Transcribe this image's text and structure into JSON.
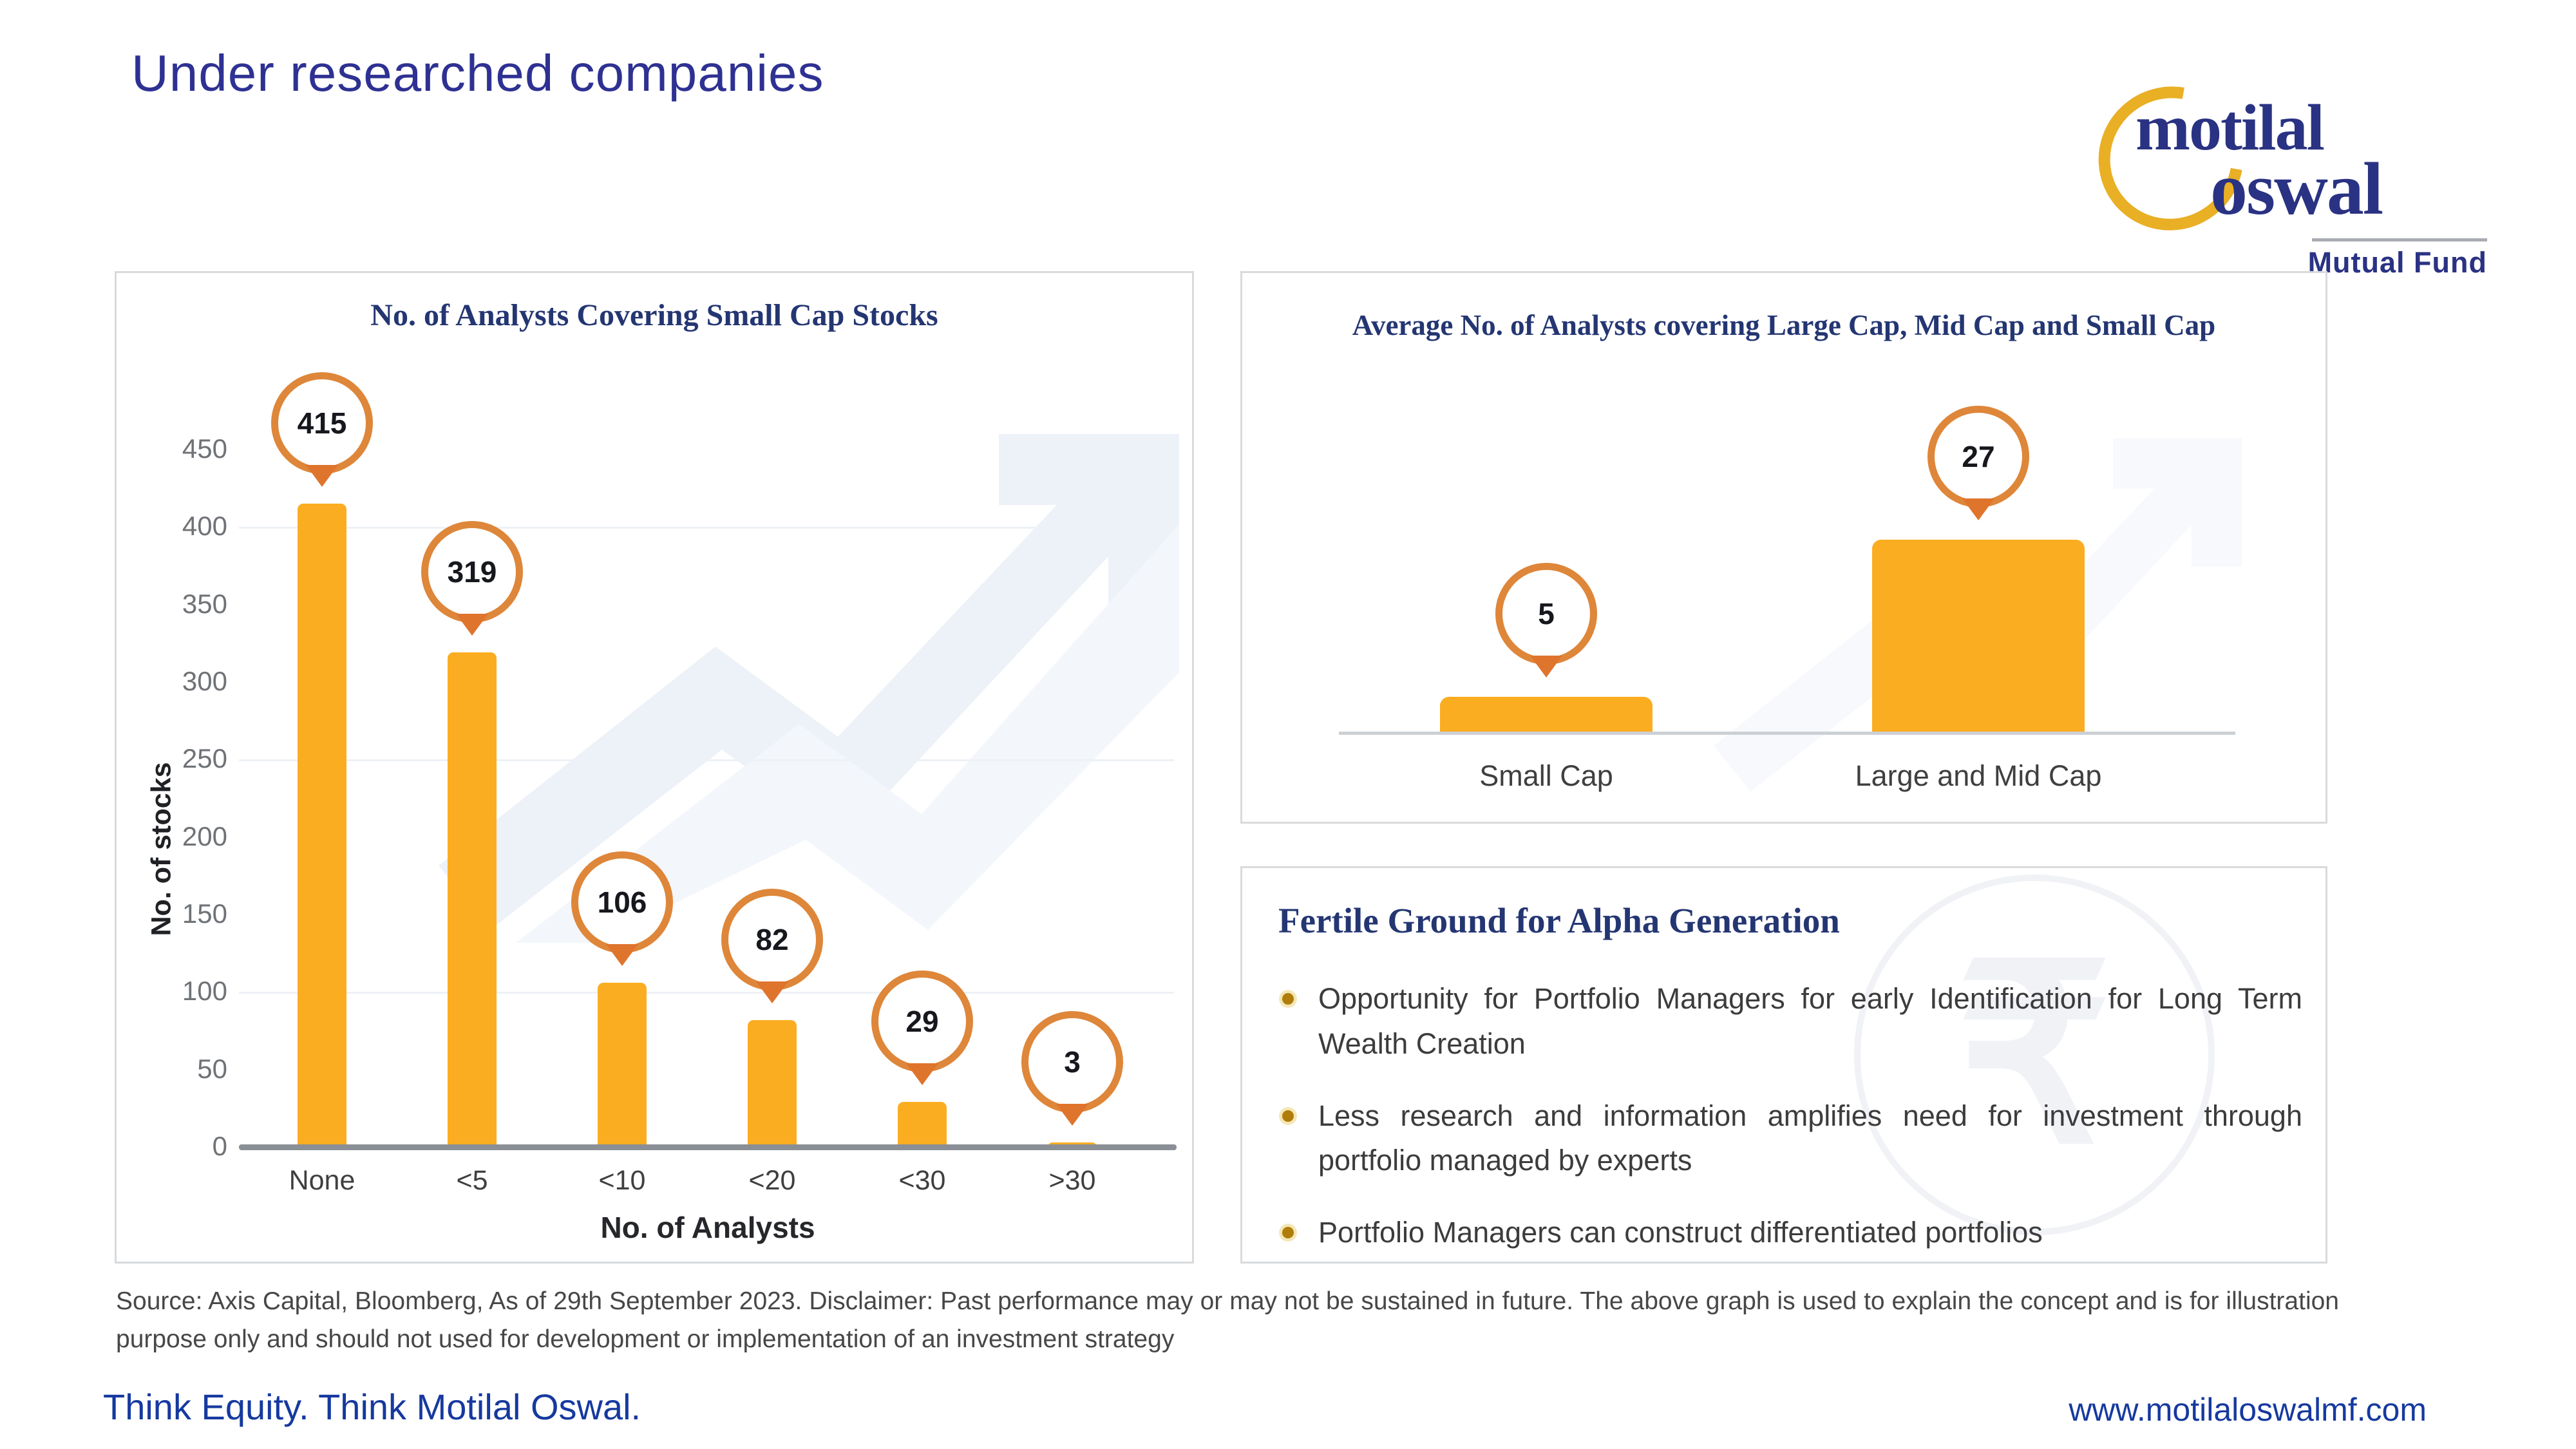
{
  "page": {
    "title": "Under researched companies",
    "source_note": "Source: Axis Capital, Bloomberg, As of 29th September 2023. Disclaimer: Past performance may or may not be sustained in future. The above graph is used to explain the concept and is for illustration purpose only and should not used for development or implementation of an investment strategy",
    "footer_left": "Think Equity. Think Motilal Oswal.",
    "footer_right": "www.motilaloswalmf.com"
  },
  "logo": {
    "word1": "motilal",
    "word2": "oswal",
    "subtitle": "Mutual Fund"
  },
  "colors": {
    "bar": "#FBAD21",
    "bubble_ring": "#DE8639",
    "bubble_pointer": "#DF742D",
    "heading_navy": "#243672",
    "title_blue": "#2E3192",
    "footer_blue": "#16399F"
  },
  "chart_data": [
    {
      "type": "bar",
      "title": "No. of Analysts Covering Small Cap Stocks",
      "xlabel": "No. of Analysts",
      "ylabel": "No. of stocks",
      "categories": [
        "None",
        "<5",
        "<10",
        "<20",
        "<30",
        ">30"
      ],
      "values": [
        415,
        319,
        106,
        82,
        29,
        3
      ],
      "yticks": [
        0,
        50,
        100,
        150,
        200,
        250,
        300,
        350,
        400,
        450
      ],
      "ylim": [
        0,
        450
      ],
      "grid": "faint horizontal",
      "legend": "none",
      "bar_color": "#FBAD21",
      "data_labels": "in orange-ringed callout bubbles above bars"
    },
    {
      "type": "bar",
      "title": "Average No. of Analysts covering Large Cap, Mid Cap and Small Cap",
      "xlabel": "",
      "ylabel": "",
      "categories": [
        "Small Cap",
        "Large and Mid Cap"
      ],
      "values": [
        5,
        27
      ],
      "ylim": [
        0,
        31
      ],
      "grid": "off",
      "legend": "none",
      "bar_color": "#FBAD21",
      "data_labels": "in orange-ringed callout bubbles above bars"
    }
  ],
  "alpha_panel": {
    "heading": "Fertile Ground for Alpha Generation",
    "bullets": [
      "Opportunity for Portfolio Managers for early Identification for Long Term Wealth Creation",
      "Less research and information amplifies need for investment through portfolio managed by experts",
      "Portfolio Managers can construct differentiated portfolios"
    ]
  }
}
